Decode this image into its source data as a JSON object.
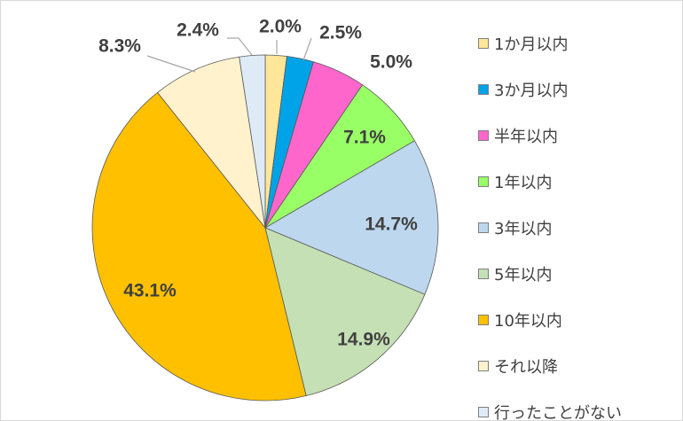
{
  "chart_data": {
    "type": "pie",
    "title": "",
    "start_angle": "12 o'clock, clockwise",
    "legend_position": "right",
    "slices": [
      {
        "name": "1か月以内",
        "value": 2.0,
        "label": "2.0%",
        "color": "#FFE699"
      },
      {
        "name": "3か月以内",
        "value": 2.5,
        "label": "2.5%",
        "color": "#00A3E8"
      },
      {
        "name": "半年以内",
        "value": 5.0,
        "label": "5.0%",
        "color": "#FF66CC"
      },
      {
        "name": "1年以内",
        "value": 7.1,
        "label": "7.1%",
        "color": "#99FF66"
      },
      {
        "name": "3年以内",
        "value": 14.7,
        "label": "14.7%",
        "color": "#BDD7EE"
      },
      {
        "name": "5年以内",
        "value": 14.9,
        "label": "14.9%",
        "color": "#C5E0B4"
      },
      {
        "name": "10年以内",
        "value": 43.1,
        "label": "43.1%",
        "color": "#FFC000"
      },
      {
        "name": "それ以降",
        "value": 8.3,
        "label": "8.3%",
        "color": "#FFF2CC"
      },
      {
        "name": "行ったことがない",
        "value": 2.4,
        "label": "2.4%",
        "color": "#DEEBF7"
      }
    ]
  }
}
